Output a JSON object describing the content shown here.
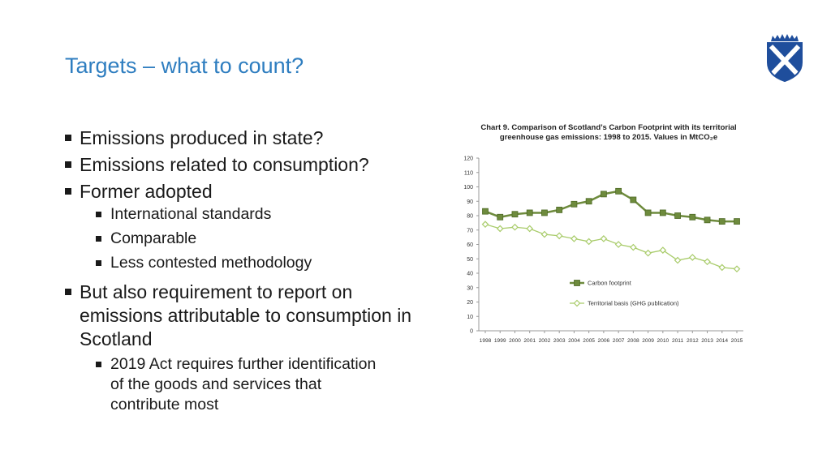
{
  "slide": {
    "title": "Targets – what to count?"
  },
  "bullets": {
    "b1": "Emissions produced in state?",
    "b2": "Emissions related to consumption?",
    "b3": "Former adopted",
    "b3_sub": [
      "International standards",
      "Comparable",
      "Less contested methodology"
    ],
    "b4": "But also requirement to report on emissions attributable to consumption in Scotland",
    "b4_sub": [
      "2019 Act requires further identification of the goods and services that contribute most"
    ]
  },
  "crest": {
    "icon": "saltire-crest-icon",
    "color": "#1F4E9C"
  },
  "chart_data": {
    "type": "line",
    "title_line1": "Chart 9.  Comparison of Scotland’s Carbon Footprint with its territorial",
    "title_line2": "greenhouse gas emissions: 1998 to 2015.  Values in MtCO₂e",
    "x": [
      "1998",
      "1999",
      "2000",
      "2001",
      "2002",
      "2003",
      "2004",
      "2005",
      "2006",
      "2007",
      "2008",
      "2009",
      "2010",
      "2011",
      "2012",
      "2013",
      "2014",
      "2015"
    ],
    "ylim": [
      0,
      120
    ],
    "yticks": [
      0,
      10,
      20,
      30,
      40,
      50,
      60,
      70,
      80,
      90,
      100,
      110,
      120
    ],
    "series": [
      {
        "name": "Carbon footprint",
        "color": "#6E8B3D",
        "marker": "square",
        "values": [
          83,
          79,
          81,
          82,
          82,
          84,
          88,
          90,
          95,
          97,
          91,
          82,
          82,
          80,
          79,
          77,
          76,
          76
        ]
      },
      {
        "name": "Territorial basis (GHG publication)",
        "color": "#A9CC6B",
        "marker": "diamond",
        "values": [
          74,
          71,
          72,
          71,
          67,
          66,
          64,
          62,
          64,
          60,
          58,
          54,
          56,
          49,
          51,
          48,
          44,
          43
        ]
      }
    ],
    "legend_position": "middle-right"
  }
}
